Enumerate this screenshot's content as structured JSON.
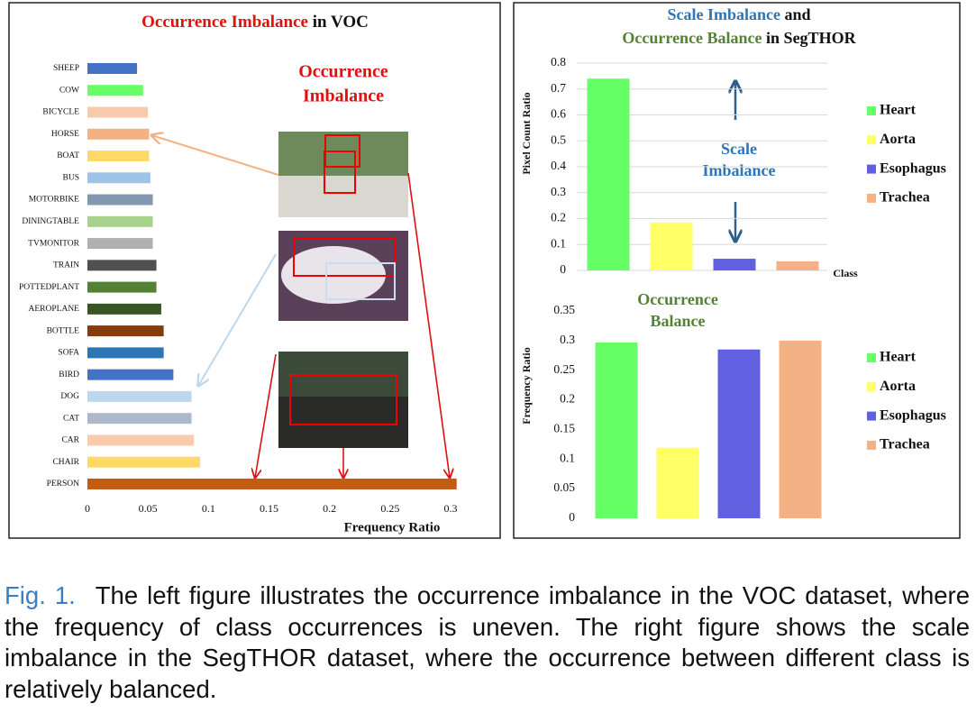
{
  "chart_data": [
    {
      "type": "bar",
      "orientation": "horizontal",
      "title": [
        "Occurrence Imbalance",
        "in VOC"
      ],
      "annotation": [
        "Occurrence",
        "Imbalance"
      ],
      "xlabel": "Frequency Ratio",
      "categories": [
        "SHEEP",
        "COW",
        "BICYCLE",
        "HORSE",
        "BOAT",
        "BUS",
        "MOTORBIKE",
        "DININGTABLE",
        "TVMONITOR",
        "TRAIN",
        "POTTEDPLANT",
        "AEROPLANE",
        "BOTTLE",
        "SOFA",
        "BIRD",
        "DOG",
        "CAT",
        "CAR",
        "CHAIR",
        "PERSON"
      ],
      "values": [
        0.041,
        0.046,
        0.05,
        0.051,
        0.051,
        0.052,
        0.054,
        0.054,
        0.054,
        0.057,
        0.057,
        0.061,
        0.063,
        0.063,
        0.071,
        0.086,
        0.086,
        0.088,
        0.093,
        0.305
      ],
      "colors": [
        "#4472c4",
        "#66ff66",
        "#f8cbad",
        "#f4b183",
        "#ffd966",
        "#9dc3e6",
        "#8497b0",
        "#a9d18e",
        "#b0b0b0",
        "#505050",
        "#548235",
        "#375623",
        "#843c0c",
        "#2e75b6",
        "#4472c4",
        "#bdd7ee",
        "#adb9ca",
        "#f8cbad",
        "#ffd966",
        "#c55a11"
      ],
      "xlim": [
        0,
        0.3
      ],
      "xticks": [
        0,
        0.05,
        0.1,
        0.15,
        0.2,
        0.25,
        0.3
      ],
      "grid": false
    },
    {
      "type": "bar",
      "title": [
        [
          "Scale Imbalance",
          "and"
        ],
        [
          "Occurrence Balance",
          "in SegTHOR"
        ]
      ],
      "annotation": [
        "Scale",
        "Imbalance"
      ],
      "ylabel": "Pixel Count Ratio",
      "xlabel": "Class",
      "categories": [
        "Heart",
        "Aorta",
        "Esophagus",
        "Trachea"
      ],
      "values": [
        0.74,
        0.185,
        0.045,
        0.035
      ],
      "colors": [
        "#66ff66",
        "#ffff66",
        "#6060e0",
        "#f4b183"
      ],
      "ylim": [
        0,
        0.8
      ],
      "yticks": [
        0,
        0.1,
        0.2,
        0.3,
        0.4,
        0.5,
        0.6,
        0.7,
        0.8
      ],
      "grid": true,
      "legend": "right"
    },
    {
      "type": "bar",
      "annotation": [
        "Occurrence",
        "Balance"
      ],
      "ylabel": "Frequency Ratio",
      "categories": [
        "Heart",
        "Aorta",
        "Esophagus",
        "Trachea"
      ],
      "values": [
        0.297,
        0.119,
        0.285,
        0.3
      ],
      "colors": [
        "#66ff66",
        "#ffff66",
        "#6060e0",
        "#f4b183"
      ],
      "ylim": [
        0,
        0.35
      ],
      "yticks": [
        0,
        0.05,
        0.1,
        0.15,
        0.2,
        0.25,
        0.3,
        0.35
      ],
      "grid": false,
      "legend": "right"
    }
  ],
  "caption": {
    "label": "Fig. 1.",
    "text": "The left figure illustrates the occurrence imbalance in the VOC dataset, where the frequency of class occurrences is uneven. The right figure shows the scale imbalance in the SegTHOR dataset, where the occurrence between different class is relatively balanced."
  }
}
